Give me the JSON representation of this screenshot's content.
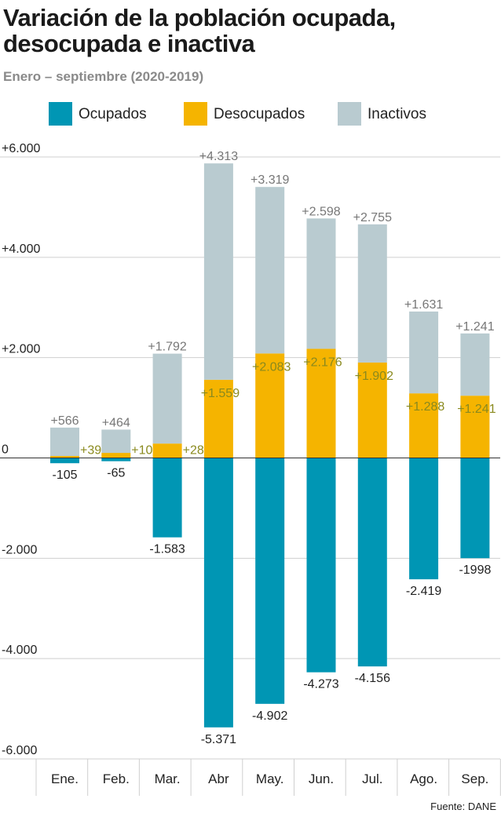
{
  "title": "Variación de la población ocupada, desocupada e inactiva",
  "subtitle": "Enero – septiembre (2020-2019)",
  "source": "Fuente: DANE",
  "colors": {
    "ocupados": "#0096b4",
    "desocupados": "#f5b400",
    "inactivos": "#b9cbd0",
    "desocupados_label": "#8a8a1e",
    "inactivos_label": "#777777"
  },
  "chart_data": {
    "type": "bar",
    "stacked": true,
    "categories": [
      "Ene.",
      "Feb.",
      "Mar.",
      "Abr",
      "May.",
      "Jun.",
      "Jul.",
      "Ago.",
      "Sep."
    ],
    "series": [
      {
        "name": "Ocupados",
        "values": [
          -105,
          -65,
          -1583,
          -5371,
          -4902,
          -4273,
          -4156,
          -2419,
          -1998
        ],
        "labels": [
          "-105",
          "-65",
          "-1.583",
          "-5.371",
          "-4.902",
          "-4.273",
          "-4.156",
          "-2.419",
          "-1998"
        ]
      },
      {
        "name": "Desocupados",
        "values": [
          39,
          101,
          287,
          1559,
          2083,
          2176,
          1902,
          1288,
          1241
        ],
        "labels": [
          "+39",
          "+101",
          "+287",
          "+1.559",
          "+2.083",
          "+2.176",
          "+1.902",
          "+1.288",
          "+1.241"
        ]
      },
      {
        "name": "Inactivos",
        "values": [
          566,
          464,
          1792,
          4313,
          3319,
          2598,
          2755,
          1631,
          1241
        ],
        "labels": [
          "+566",
          "+464",
          "+1.792",
          "+4.313",
          "+3.319",
          "+2.598",
          "+2.755",
          "+1.631",
          "+1.241"
        ]
      }
    ],
    "ylim": [
      -6000,
      6000
    ],
    "yticks": [
      6000,
      4000,
      2000,
      0,
      -2000,
      -4000,
      -6000
    ],
    "ytick_labels": [
      "+6.000",
      "+4.000",
      "+2.000",
      "0",
      "-2.000",
      "-4.000",
      "-6.000"
    ],
    "grid": true,
    "legend_position": "top"
  }
}
